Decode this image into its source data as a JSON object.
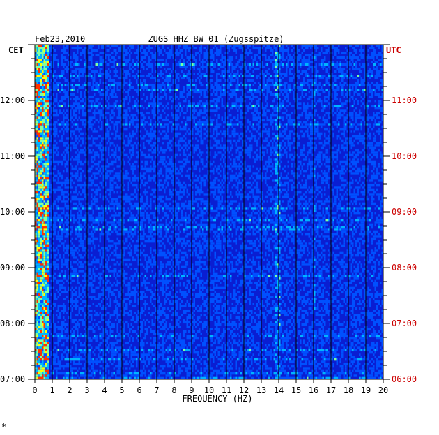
{
  "header": {
    "date": "Feb23,2010",
    "station": "ZUGS HHZ BW 01 (Zugsspitze)"
  },
  "corner_marker": "*",
  "chart_data": {
    "type": "heatmap",
    "title": "ZUGS HHZ BW 01 (Zugsspitze)",
    "subtitle": "Feb23,2010",
    "xlabel": "FREQUENCY (HZ)",
    "x_ticks": [
      "0",
      "1",
      "2",
      "3",
      "4",
      "5",
      "6",
      "7",
      "8",
      "9",
      "10",
      "11",
      "12",
      "13",
      "14",
      "15",
      "16",
      "17",
      "18",
      "19",
      "20"
    ],
    "xlim": [
      0,
      20
    ],
    "left_axis": {
      "label": "CET",
      "ticks": [
        "07:00",
        "08:00",
        "09:00",
        "10:00",
        "11:00",
        "12:00"
      ],
      "color": "#000000"
    },
    "right_axis": {
      "label": "UTC",
      "ticks": [
        "06:00",
        "07:00",
        "08:00",
        "09:00",
        "10:00",
        "11:00"
      ],
      "color": "#cc0000"
    },
    "time_range_utc": [
      "06:00",
      "12:00"
    ],
    "rows_per_hour": 4,
    "hot_frequencies_hz": [
      0.3,
      13.9,
      16.0
    ],
    "colors": {
      "background": "#0a1ed2",
      "low": "#0014c8",
      "mid": "#00b4ff",
      "high": "#ffff00",
      "peak": "#ff3200",
      "grid": "#000000"
    }
  }
}
